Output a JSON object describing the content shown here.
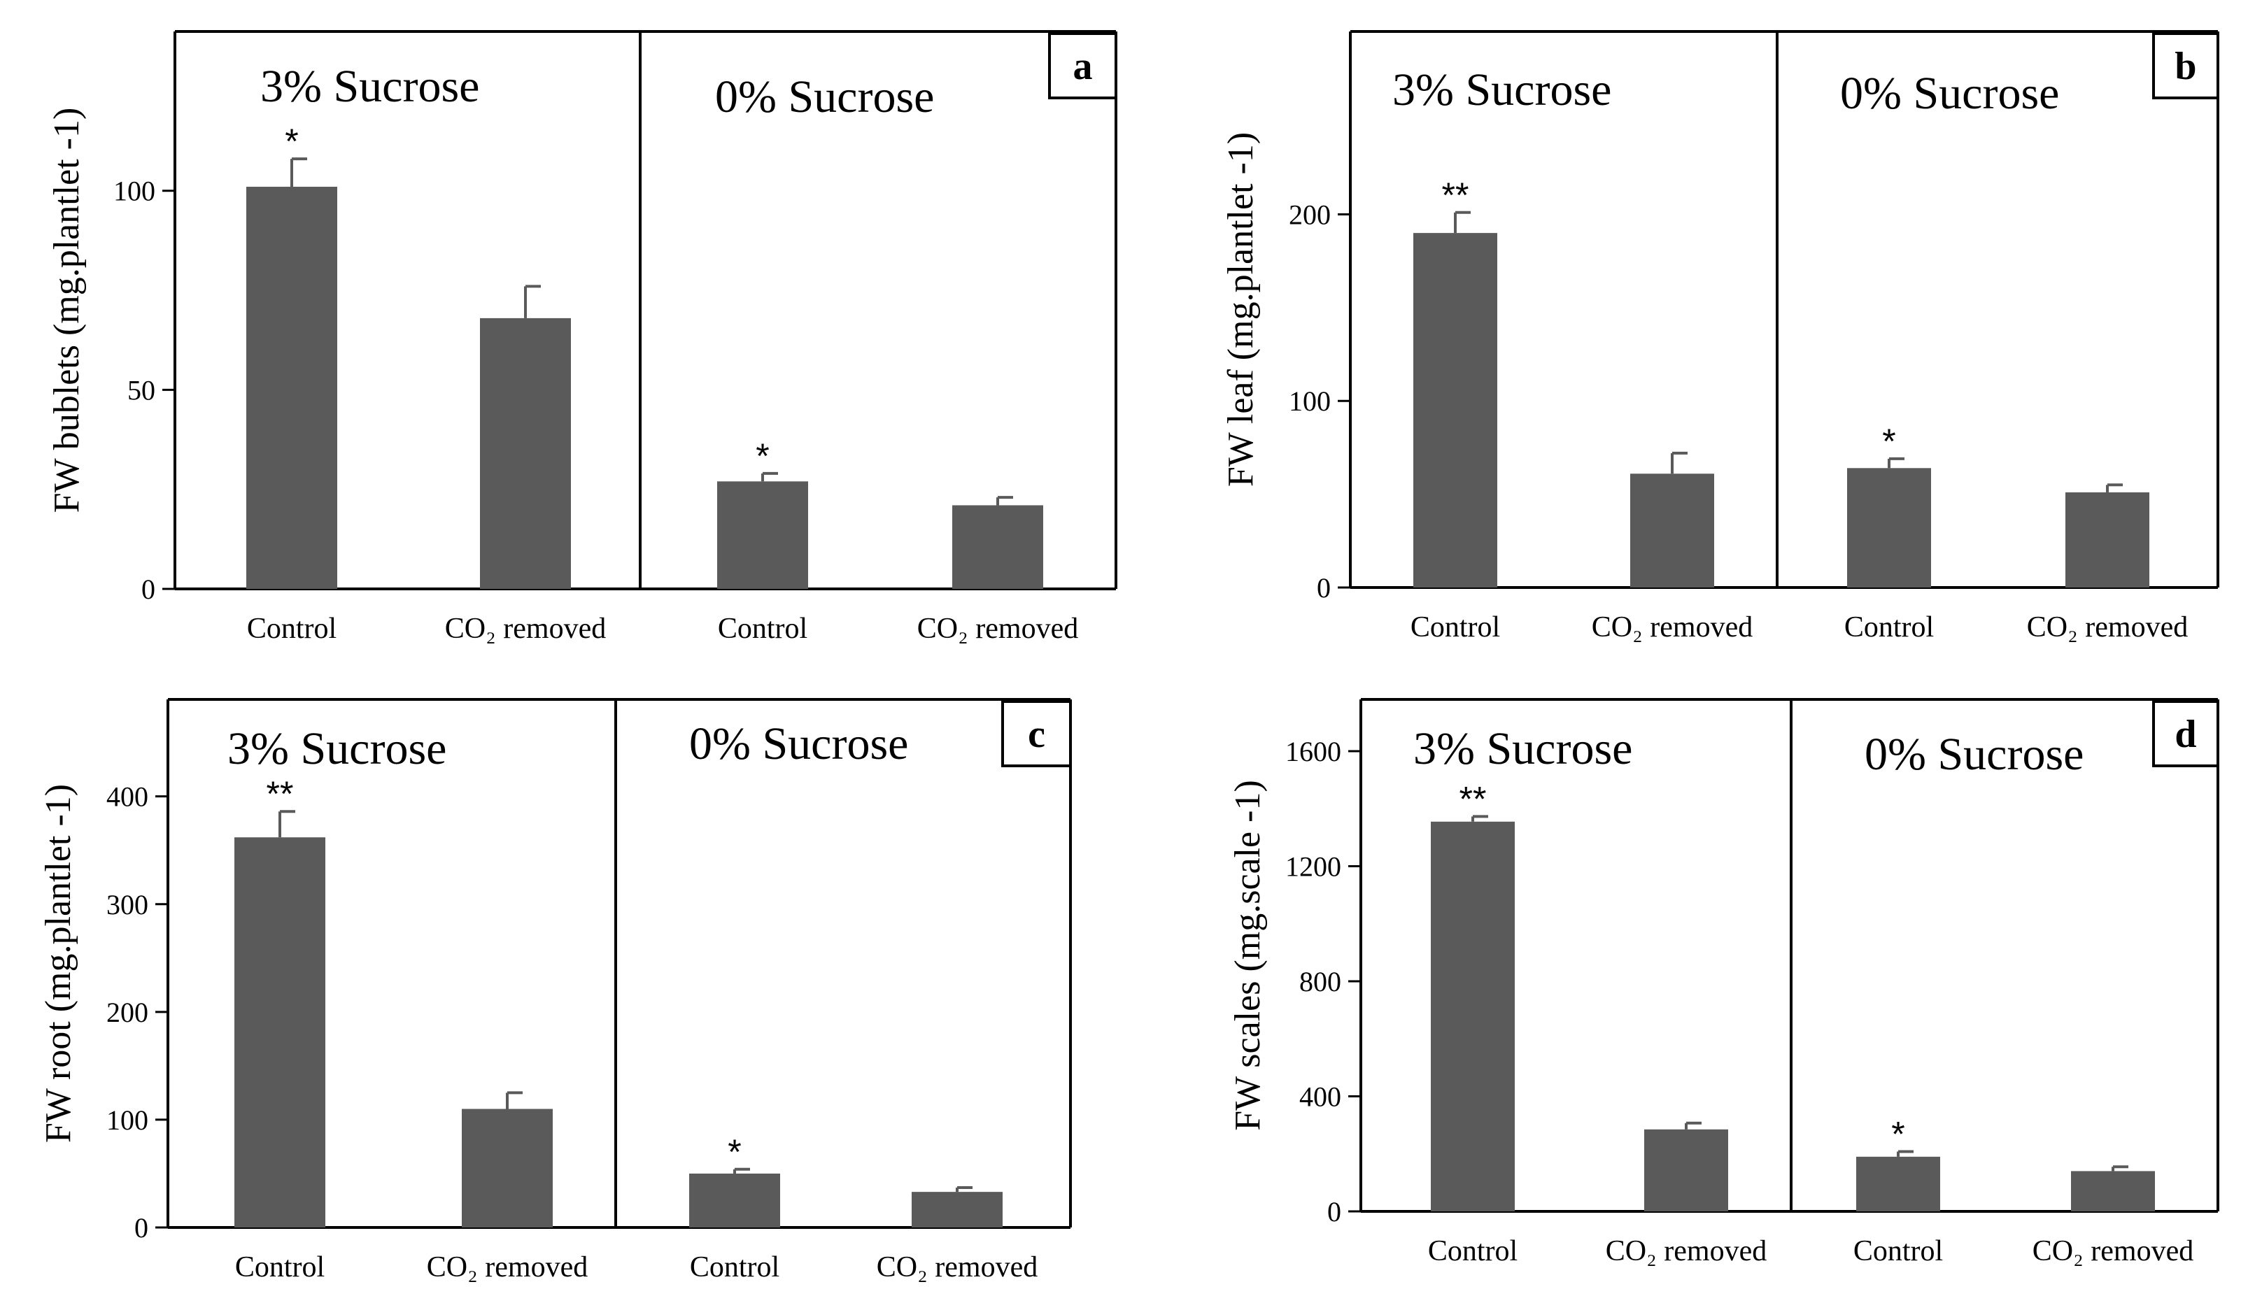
{
  "colors": {
    "bar": "#5a5a5a",
    "axis": "#000000",
    "background": "#ffffff"
  },
  "chart_data": [
    {
      "type": "bar",
      "panel": "a",
      "ylabel": "FW bublets (mg.plantlet -1)",
      "ylim": [
        0,
        140
      ],
      "yticks": [
        0,
        50,
        100
      ],
      "groups": [
        "3% Sucrose",
        "0% Sucrose"
      ],
      "categories": [
        "Control",
        "CO₂ removed",
        "Control",
        "CO₂ removed"
      ],
      "values": [
        101,
        68,
        27,
        21
      ],
      "errors": [
        7,
        8,
        2,
        2
      ],
      "significance": [
        "*",
        "",
        "*",
        ""
      ]
    },
    {
      "type": "bar",
      "panel": "b",
      "ylabel": "FW leaf (mg.plantlet -1)",
      "ylim": [
        0,
        298
      ],
      "yticks": [
        0,
        100,
        200
      ],
      "groups": [
        "3% Sucrose",
        "0% Sucrose"
      ],
      "categories": [
        "Control",
        "CO₂ removed",
        "Control",
        "CO₂ removed"
      ],
      "values": [
        190,
        61,
        64,
        51
      ],
      "errors": [
        11,
        11,
        5,
        4
      ],
      "significance": [
        "**",
        "",
        "*",
        ""
      ]
    },
    {
      "type": "bar",
      "panel": "c",
      "ylabel": "FW root (mg.plantlet -1)",
      "ylim": [
        0,
        490
      ],
      "yticks": [
        0,
        100,
        200,
        300,
        400
      ],
      "groups": [
        "3% Sucrose",
        "0% Sucrose"
      ],
      "categories": [
        "Control",
        "CO₂ removed",
        "Control",
        "CO₂ removed"
      ],
      "values": [
        362,
        110,
        50,
        33
      ],
      "errors": [
        24,
        15,
        4,
        4
      ],
      "significance": [
        "**",
        "",
        "*",
        ""
      ]
    },
    {
      "type": "bar",
      "panel": "d",
      "ylabel": "FW scales (mg.scale -1)",
      "ylim": [
        0,
        1780
      ],
      "yticks": [
        0,
        400,
        800,
        1200,
        1600
      ],
      "groups": [
        "3% Sucrose",
        "0% Sucrose"
      ],
      "categories": [
        "Control",
        "CO₂ removed",
        "Control",
        "CO₂ removed"
      ],
      "values": [
        1355,
        285,
        190,
        140
      ],
      "errors": [
        18,
        22,
        18,
        15
      ],
      "significance": [
        "**",
        "",
        "*",
        ""
      ]
    }
  ]
}
